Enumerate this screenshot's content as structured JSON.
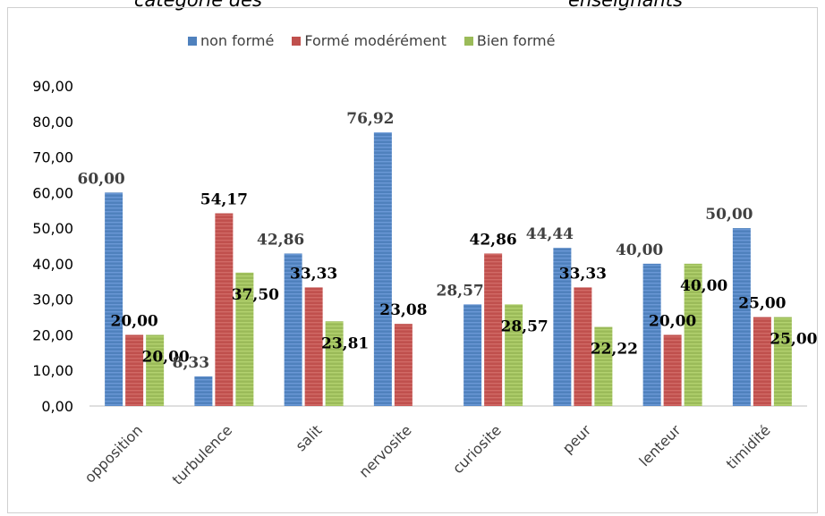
{
  "header": {
    "title_fragment_left": "catégorie des",
    "title_fragment_right": "enseignants"
  },
  "colors": {
    "non_forme": "#4f81bd",
    "modere": "#c0504d",
    "bien": "#9bbb59"
  },
  "chart_data": {
    "type": "bar",
    "categories": [
      "opposition",
      "turbulence",
      "salit",
      "nervosite",
      "curiosite",
      "peur",
      "lenteur",
      "timidité"
    ],
    "series": [
      {
        "name": "non formé",
        "values": [
          60.0,
          8.33,
          42.86,
          76.92,
          28.57,
          44.44,
          40.0,
          50.0
        ],
        "labels": [
          "60,00",
          "8,33",
          "42,86",
          "76,92",
          "28,57",
          "44,44",
          "40,00",
          "50,00"
        ]
      },
      {
        "name": "Formé modérément",
        "values": [
          20.0,
          54.17,
          33.33,
          23.08,
          42.86,
          33.33,
          20.0,
          25.0
        ],
        "labels": [
          "20,00",
          "54,17",
          "33,33",
          "23,08",
          "42,86",
          "33,33",
          "20,00",
          "25,00"
        ]
      },
      {
        "name": "Bien formé",
        "values": [
          20.0,
          37.5,
          23.81,
          null,
          28.57,
          22.22,
          40.0,
          25.0
        ],
        "labels": [
          "20,00",
          "37,50",
          "23,81",
          "",
          "28,57",
          "22,22",
          "40,00",
          "25,00"
        ]
      }
    ],
    "yticks": [
      "0,00",
      "10,00",
      "20,00",
      "30,00",
      "40,00",
      "50,00",
      "60,00",
      "70,00",
      "80,00",
      "90,00"
    ],
    "ylim": [
      0,
      90
    ],
    "grid": false,
    "legend_position": "top"
  }
}
